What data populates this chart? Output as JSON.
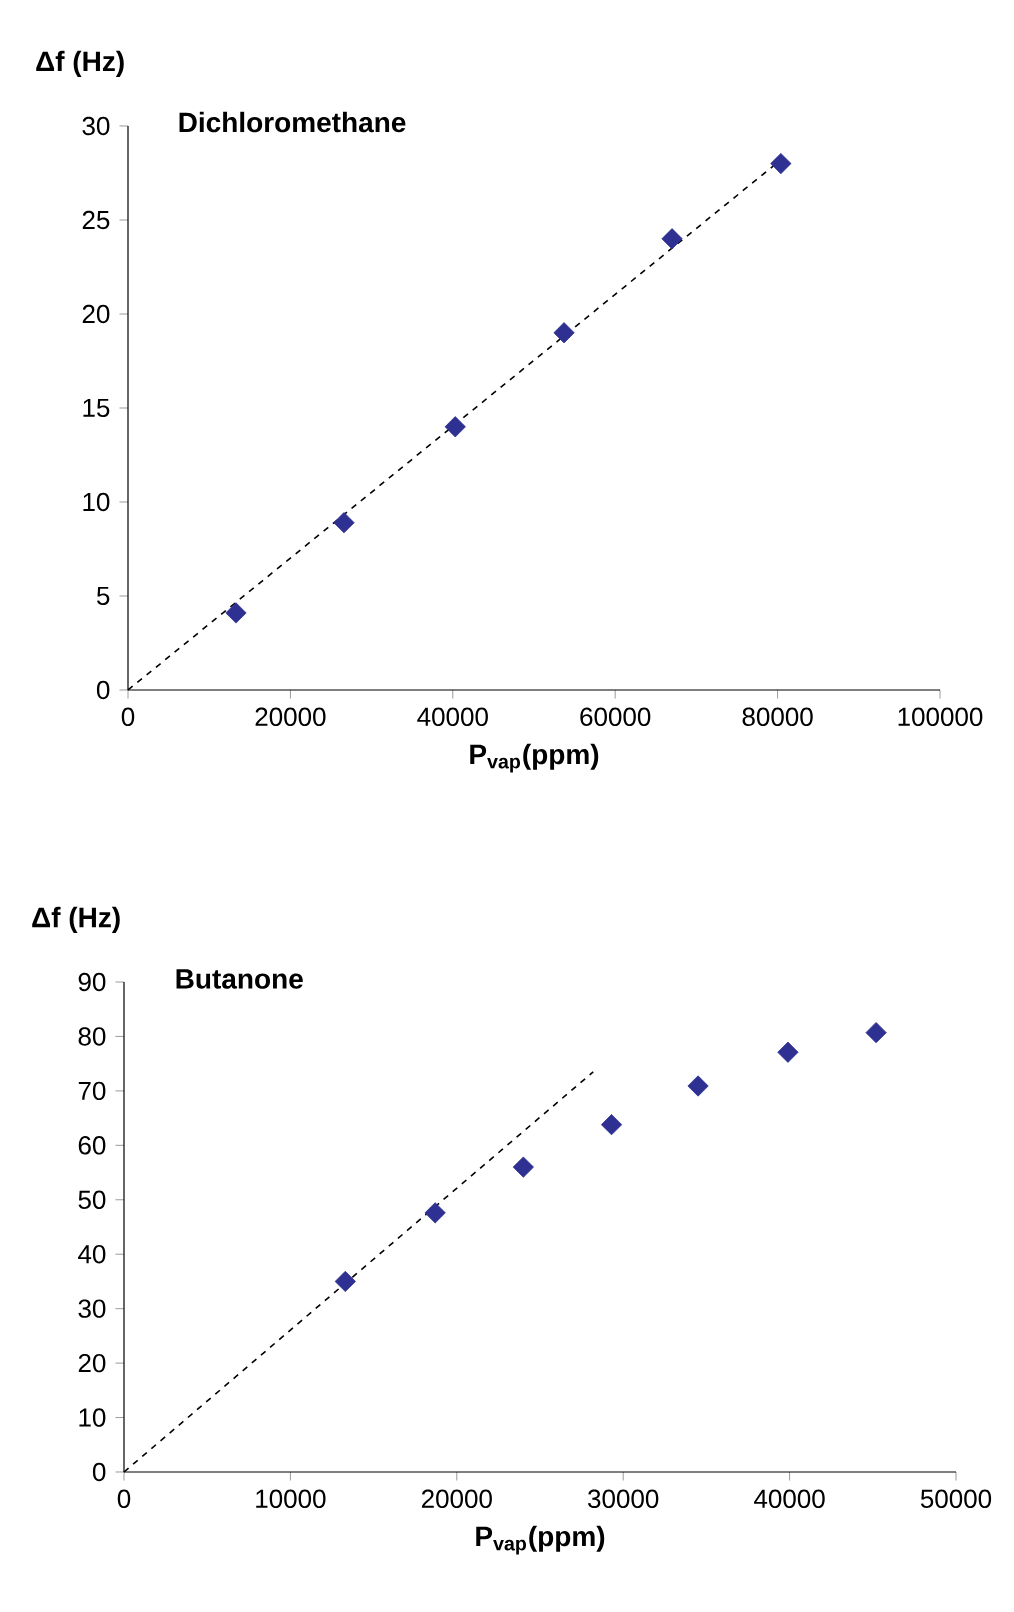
{
  "chart_data": [
    {
      "type": "scatter",
      "title": "Dichloromethane",
      "xlabel": "P$_{vap}$(ppm)",
      "ylabel": "Δf (Hz)",
      "xlim": [
        0,
        100000
      ],
      "ylim": [
        0,
        30
      ],
      "xticks": [
        0,
        20000,
        40000,
        60000,
        80000,
        100000
      ],
      "yticks": [
        0,
        5,
        10,
        15,
        20,
        25,
        30
      ],
      "series": [
        {
          "color": "#2e3192",
          "marker": "diamond",
          "x": [
            13300,
            26600,
            40300,
            53700,
            67000,
            80400
          ],
          "values": [
            4.1,
            8.9,
            14.0,
            19.0,
            24.0,
            28.0
          ]
        },
        {
          "type": "line",
          "color": "#000000",
          "marker": "none",
          "line_style": "dashed",
          "x": [
            0,
            80400
          ],
          "values": [
            0,
            28.2
          ]
        }
      ]
    },
    {
      "type": "scatter",
      "title": "Butanone",
      "xlabel": "P$_{vap}$(ppm)",
      "ylabel": "Δf (Hz)",
      "xlim": [
        0,
        50000
      ],
      "ylim": [
        0,
        90
      ],
      "xticks": [
        0,
        10000,
        20000,
        30000,
        40000,
        50000
      ],
      "yticks": [
        0,
        10,
        20,
        30,
        40,
        50,
        60,
        70,
        80,
        90
      ],
      "series": [
        {
          "color": "#2e3192",
          "marker": "diamond",
          "x": [
            13300,
            18700,
            24000,
            29300,
            34500,
            39900,
            45200
          ],
          "values": [
            35.0,
            47.6,
            56.0,
            63.8,
            70.9,
            77.1,
            80.7
          ]
        },
        {
          "type": "line",
          "color": "#000000",
          "marker": "none",
          "line_style": "dashed",
          "x": [
            0,
            28200
          ],
          "values": [
            0,
            73.5
          ]
        }
      ]
    }
  ]
}
